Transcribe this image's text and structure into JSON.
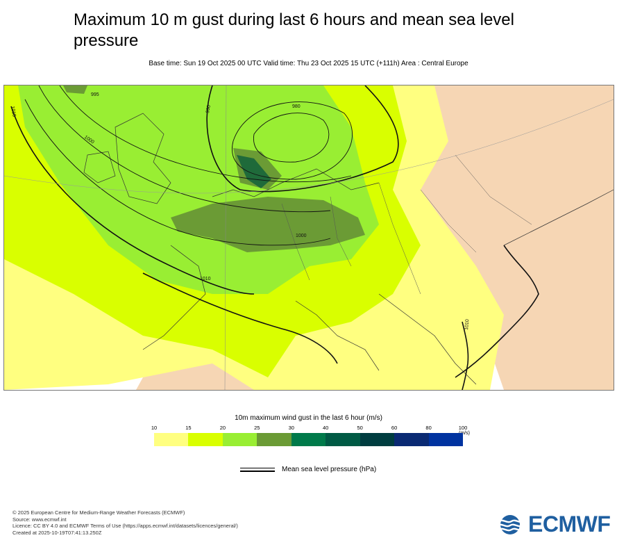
{
  "header": {
    "title_line1": "Maximum 10 m gust during last 6 hours and mean sea level",
    "title_line2": "pressure",
    "subtitle": "Base time: Sun 19 Oct 2025 00 UTC Valid time: Thu 23 Oct 2025 15 UTC (+111h) Area : Central Europe"
  },
  "map": {
    "contour_labels": [
      "1010",
      "995",
      "1000",
      "980",
      "990",
      "1000",
      "1010",
      "1010"
    ],
    "colors": {
      "land": "#f6d6b4",
      "sea_low": "#ffffff",
      "gust_10_15": "#ffff80",
      "gust_15_20": "#d9ff00",
      "gust_20_25": "#99ee33",
      "gust_25_30": "#6b9b35",
      "gust_30_40": "#007a4a",
      "gust_40_50": "#005a44",
      "gust_50_60": "#003d40",
      "gust_60_80": "#0a2a73",
      "gust_80_100": "#0033a0"
    }
  },
  "legend": {
    "title": "10m maximum wind gust in the last 6 hour (m/s)",
    "ticks": [
      "10",
      "15",
      "20",
      "25",
      "30",
      "40",
      "50",
      "60",
      "80",
      "100"
    ],
    "unit": "(m/s)",
    "swatches": [
      "#ffff80",
      "#d9ff00",
      "#99ee33",
      "#6b9b35",
      "#007a4a",
      "#005a44",
      "#003d40",
      "#0a2a73",
      "#0033a0"
    ],
    "mslp_label": "Mean sea level pressure (hPa)"
  },
  "footer": {
    "line1": "© 2025 European Centre for Medium-Range Weather Forecasts (ECMWF)",
    "line2": "Source: www.ecmwf.int",
    "line3": "Licence: CC BY 4.0 and ECMWF Terms of Use (https://apps.ecmwf.int/datasets/licences/general/)",
    "line4": "Created at 2025-10-19T07:41:13.250Z"
  },
  "logo": {
    "text": "ECMWF",
    "icon": "ecmwf-waves-icon",
    "color": "#1f5fa0"
  }
}
